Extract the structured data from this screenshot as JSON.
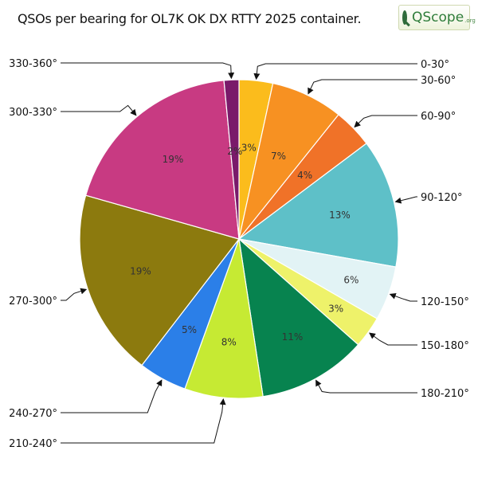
{
  "title": "QSOs per bearing for OL7K OK DX RTTY 2025 container.",
  "logo": {
    "text": "QScope",
    "suffix": ".org"
  },
  "chart_data": {
    "type": "pie",
    "title": "QSOs per bearing for OL7K OK DX RTTY 2025 container.",
    "start_angle_deg": 0,
    "direction": "clockwise",
    "slices": [
      {
        "label": "0-30°",
        "value": 3.4,
        "pct_label": "3%",
        "color": "#fbbc1c"
      },
      {
        "label": "30-60°",
        "value": 7.3,
        "pct_label": "7%",
        "color": "#f79122"
      },
      {
        "label": "60-90°",
        "value": 4.0,
        "pct_label": "4%",
        "color": "#f07228"
      },
      {
        "label": "90-120°",
        "value": 13.0,
        "pct_label": "13%",
        "color": "#5ec0c8"
      },
      {
        "label": "120-150°",
        "value": 5.5,
        "pct_label": "6%",
        "color": "#e2f3f5"
      },
      {
        "label": "150-180°",
        "value": 3.2,
        "pct_label": "3%",
        "color": "#eef26a"
      },
      {
        "label": "180-210°",
        "value": 11.0,
        "pct_label": "11%",
        "color": "#07834f"
      },
      {
        "label": "210-240°",
        "value": 7.9,
        "pct_label": "8%",
        "color": "#c6ea33"
      },
      {
        "label": "240-270°",
        "value": 4.9,
        "pct_label": "5%",
        "color": "#2b7fe8"
      },
      {
        "label": "270-300°",
        "value": 18.9,
        "pct_label": "19%",
        "color": "#8c7a0e"
      },
      {
        "label": "300-330°",
        "value": 19.0,
        "pct_label": "19%",
        "color": "#c83a82"
      },
      {
        "label": "330-360°",
        "value": 1.5,
        "pct_label": "2%",
        "color": "#7a1a6a"
      }
    ]
  }
}
